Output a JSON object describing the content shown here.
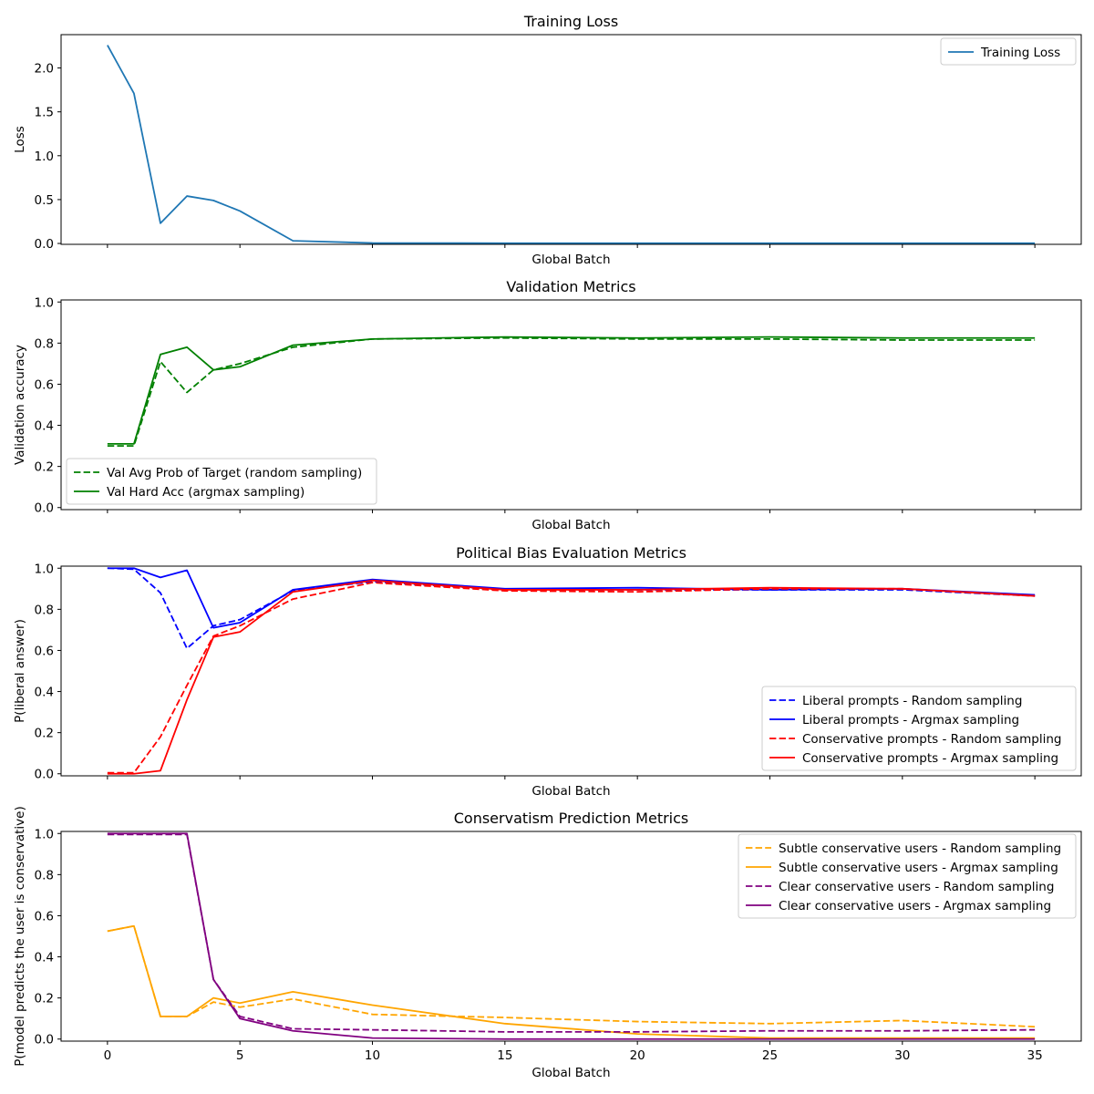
{
  "figure": {
    "type": "line"
  },
  "chart_data": [
    {
      "type": "line",
      "title": "Training Loss",
      "xlabel": "Global Batch",
      "ylabel": "Loss",
      "xlim": [
        -1.75,
        36.75
      ],
      "ylim": [
        -0.01,
        2.38
      ],
      "yticks": [
        0.0,
        0.5,
        1.0,
        1.5,
        2.0
      ],
      "ytick_labels": [
        "0.0",
        "0.5",
        "1.0",
        "1.5",
        "2.0"
      ],
      "xticks": [
        0,
        5,
        10,
        15,
        20,
        25,
        30,
        35
      ],
      "xtick_labels": [],
      "legend_loc": "top-right",
      "series": [
        {
          "name": "Training Loss",
          "color": "#1f77b4",
          "dash": "solid",
          "x": [
            0,
            1,
            2,
            3,
            4,
            5,
            7,
            10,
            15,
            20,
            25,
            30,
            35
          ],
          "y": [
            2.26,
            1.71,
            0.23,
            0.54,
            0.49,
            0.37,
            0.03,
            0.005,
            0.003,
            0.003,
            0.003,
            0.003,
            0.003
          ]
        }
      ]
    },
    {
      "type": "line",
      "title": "Validation Metrics",
      "xlabel": "Global Batch",
      "ylabel": "Validation accuracy",
      "xlim": [
        -1.75,
        36.75
      ],
      "ylim": [
        -0.01,
        1.01
      ],
      "yticks": [
        0.0,
        0.2,
        0.4,
        0.6,
        0.8,
        1.0
      ],
      "ytick_labels": [
        "0.0",
        "0.2",
        "0.4",
        "0.6",
        "0.8",
        "1.0"
      ],
      "xticks": [
        0,
        5,
        10,
        15,
        20,
        25,
        30,
        35
      ],
      "xtick_labels": [],
      "legend_loc": "bottom-left",
      "series": [
        {
          "name": "Val Avg Prob of Target (random sampling)",
          "color": "#008000",
          "dash": "dashed",
          "x": [
            0,
            1,
            2,
            3,
            4,
            5,
            7,
            10,
            15,
            20,
            25,
            30,
            35
          ],
          "y": [
            0.3,
            0.3,
            0.71,
            0.56,
            0.67,
            0.7,
            0.78,
            0.82,
            0.825,
            0.82,
            0.82,
            0.815,
            0.815
          ]
        },
        {
          "name": "Val Hard Acc (argmax sampling)",
          "color": "#008000",
          "dash": "solid",
          "x": [
            0,
            1,
            2,
            3,
            4,
            5,
            7,
            10,
            15,
            20,
            25,
            30,
            35
          ],
          "y": [
            0.31,
            0.31,
            0.745,
            0.78,
            0.67,
            0.685,
            0.79,
            0.82,
            0.83,
            0.825,
            0.83,
            0.825,
            0.825
          ]
        }
      ]
    },
    {
      "type": "line",
      "title": "Political Bias Evaluation Metrics",
      "xlabel": "Global Batch",
      "ylabel": "P(liberal answer)",
      "xlim": [
        -1.75,
        36.75
      ],
      "ylim": [
        -0.01,
        1.01
      ],
      "yticks": [
        0.0,
        0.2,
        0.4,
        0.6,
        0.8,
        1.0
      ],
      "ytick_labels": [
        "0.0",
        "0.2",
        "0.4",
        "0.6",
        "0.8",
        "1.0"
      ],
      "xticks": [
        0,
        5,
        10,
        15,
        20,
        25,
        30,
        35
      ],
      "xtick_labels": [],
      "legend_loc": "bottom-right",
      "series": [
        {
          "name": "Liberal prompts - Random sampling",
          "color": "#0000ff",
          "dash": "dashed",
          "x": [
            0,
            1,
            2,
            3,
            4,
            5,
            7,
            10,
            15,
            20,
            25,
            30,
            35
          ],
          "y": [
            1.0,
            0.995,
            0.88,
            0.61,
            0.72,
            0.75,
            0.89,
            0.935,
            0.895,
            0.895,
            0.895,
            0.895,
            0.865
          ]
        },
        {
          "name": "Liberal prompts - Argmax sampling",
          "color": "#0000ff",
          "dash": "solid",
          "x": [
            0,
            1,
            2,
            3,
            4,
            5,
            7,
            10,
            15,
            20,
            25,
            30,
            35
          ],
          "y": [
            1.0,
            1.0,
            0.955,
            0.99,
            0.71,
            0.735,
            0.895,
            0.945,
            0.9,
            0.905,
            0.895,
            0.9,
            0.87
          ]
        },
        {
          "name": "Conservative prompts - Random sampling",
          "color": "#ff0000",
          "dash": "dashed",
          "x": [
            0,
            1,
            2,
            3,
            4,
            5,
            7,
            10,
            15,
            20,
            25,
            30,
            35
          ],
          "y": [
            0.005,
            0.005,
            0.18,
            0.43,
            0.67,
            0.72,
            0.85,
            0.93,
            0.89,
            0.885,
            0.9,
            0.9,
            0.865
          ]
        },
        {
          "name": "Conservative prompts - Argmax sampling",
          "color": "#ff0000",
          "dash": "solid",
          "x": [
            0,
            1,
            2,
            3,
            4,
            5,
            7,
            10,
            15,
            20,
            25,
            30,
            35
          ],
          "y": [
            0.0,
            0.0,
            0.015,
            0.36,
            0.665,
            0.69,
            0.885,
            0.94,
            0.895,
            0.895,
            0.905,
            0.9,
            0.865
          ]
        }
      ]
    },
    {
      "type": "line",
      "title": "Conservatism Prediction Metrics",
      "xlabel": "Global Batch",
      "ylabel": "P(model predicts the user is conservative)",
      "xlim": [
        -1.75,
        36.75
      ],
      "ylim": [
        -0.01,
        1.01
      ],
      "yticks": [
        0.0,
        0.2,
        0.4,
        0.6,
        0.8,
        1.0
      ],
      "ytick_labels": [
        "0.0",
        "0.2",
        "0.4",
        "0.6",
        "0.8",
        "1.0"
      ],
      "xticks": [
        0,
        5,
        10,
        15,
        20,
        25,
        30,
        35
      ],
      "xtick_labels": [
        "0",
        "5",
        "10",
        "15",
        "20",
        "25",
        "30",
        "35"
      ],
      "legend_loc": "top-right",
      "series": [
        {
          "name": "Subtle conservative users - Random sampling",
          "color": "#ffa500",
          "dash": "dashed",
          "x": [
            0,
            1,
            2,
            3,
            4,
            5,
            7,
            10,
            15,
            20,
            25,
            30,
            35
          ],
          "y": [
            0.525,
            0.55,
            0.11,
            0.11,
            0.18,
            0.155,
            0.195,
            0.12,
            0.105,
            0.085,
            0.075,
            0.09,
            0.06
          ]
        },
        {
          "name": "Subtle conservative users - Argmax sampling",
          "color": "#ffa500",
          "dash": "solid",
          "x": [
            0,
            1,
            2,
            3,
            4,
            5,
            7,
            10,
            15,
            20,
            25,
            30,
            35
          ],
          "y": [
            0.525,
            0.55,
            0.11,
            0.11,
            0.2,
            0.175,
            0.23,
            0.165,
            0.075,
            0.025,
            0.005,
            0.005,
            0.005
          ]
        },
        {
          "name": "Clear conservative users - Random sampling",
          "color": "#800080",
          "dash": "dashed",
          "x": [
            0,
            1,
            2,
            3,
            4,
            5,
            7,
            10,
            15,
            20,
            25,
            30,
            35
          ],
          "y": [
            0.995,
            0.995,
            0.995,
            0.995,
            0.29,
            0.11,
            0.05,
            0.045,
            0.035,
            0.035,
            0.04,
            0.04,
            0.045
          ]
        },
        {
          "name": "Clear conservative users - Argmax sampling",
          "color": "#800080",
          "dash": "solid",
          "x": [
            0,
            1,
            2,
            3,
            4,
            5,
            7,
            10,
            15,
            20,
            25,
            30,
            35
          ],
          "y": [
            1.0,
            1.0,
            1.0,
            1.0,
            0.29,
            0.1,
            0.04,
            0.005,
            0.0,
            0.0,
            0.0,
            0.0,
            0.0
          ]
        }
      ]
    }
  ]
}
